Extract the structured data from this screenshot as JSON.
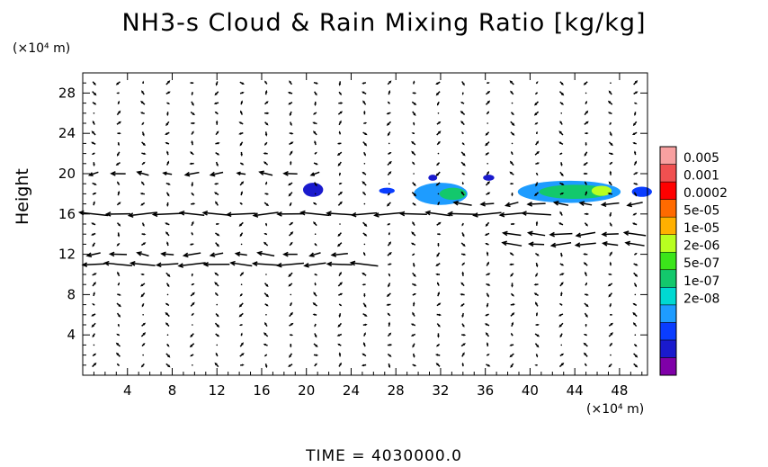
{
  "chart_data": {
    "type": "heatmap",
    "title": "NH3-s Cloud & Rain Mixing Ratio [kg/kg]",
    "ylabel": "Height",
    "x_unit": "(×10⁴ m)",
    "y_unit": "(×10⁴ m)",
    "xlim": [
      0,
      50.5
    ],
    "ylim": [
      0,
      30
    ],
    "x_ticks": [
      4,
      8,
      12,
      16,
      20,
      24,
      28,
      32,
      36,
      40,
      44,
      48
    ],
    "y_ticks": [
      4,
      8,
      12,
      16,
      20,
      24,
      28
    ],
    "colorbar": {
      "labels": [
        "0.005",
        "0.001",
        "0.0002",
        "5e-05",
        "1e-05",
        "2e-06",
        "5e-07",
        "1e-07",
        "2e-08"
      ],
      "colors": [
        "#7f00a8",
        "#1a1acd",
        "#0a3dff",
        "#1e9cff",
        "#00d9d2",
        "#13c86c",
        "#3be51a",
        "#b8ff20",
        "#ffb000",
        "#ff6a00",
        "#ff0000",
        "#f05050",
        "#f8a0a0"
      ]
    },
    "cloud_regions": [
      {
        "x": 20.6,
        "y": 18.4,
        "rx": 0.9,
        "ry": 0.7,
        "level": 1
      },
      {
        "x": 27.2,
        "y": 18.3,
        "rx": 0.7,
        "ry": 0.3,
        "level": 2
      },
      {
        "x": 32.0,
        "y": 18.0,
        "rx": 2.4,
        "ry": 1.1,
        "level": 3
      },
      {
        "x": 33.1,
        "y": 18.0,
        "rx": 1.2,
        "ry": 0.6,
        "level": 5
      },
      {
        "x": 43.5,
        "y": 18.2,
        "rx": 4.6,
        "ry": 1.1,
        "level": 3
      },
      {
        "x": 44.0,
        "y": 18.2,
        "rx": 3.2,
        "ry": 0.7,
        "level": 5
      },
      {
        "x": 46.4,
        "y": 18.3,
        "rx": 0.9,
        "ry": 0.5,
        "level": 7
      },
      {
        "x": 50.0,
        "y": 18.2,
        "rx": 0.9,
        "ry": 0.5,
        "level": 2
      },
      {
        "x": 36.3,
        "y": 19.6,
        "rx": 0.5,
        "ry": 0.3,
        "level": 1
      },
      {
        "x": 31.3,
        "y": 19.6,
        "rx": 0.4,
        "ry": 0.3,
        "level": 1
      }
    ],
    "wind_jets": [
      {
        "y": 16.0,
        "x_from": 40,
        "x_to": 0,
        "strength": 1.0
      },
      {
        "y": 11.0,
        "x_from": 26,
        "x_to": 0,
        "strength": 0.9
      },
      {
        "y": 11.9,
        "x_from": 24,
        "x_to": 0,
        "strength": 0.6
      },
      {
        "y": 20.1,
        "x_from": 20,
        "x_to": 0,
        "strength": 0.5
      },
      {
        "y": 17.2,
        "x_from": 50,
        "x_to": 34,
        "strength": 0.8
      },
      {
        "y": 13.1,
        "x_from": 50,
        "x_to": 38,
        "strength": 0.8
      },
      {
        "y": 14.0,
        "x_from": 50,
        "x_to": 38,
        "strength": 0.7
      }
    ],
    "time_label": "TIME = 4030000.0"
  }
}
